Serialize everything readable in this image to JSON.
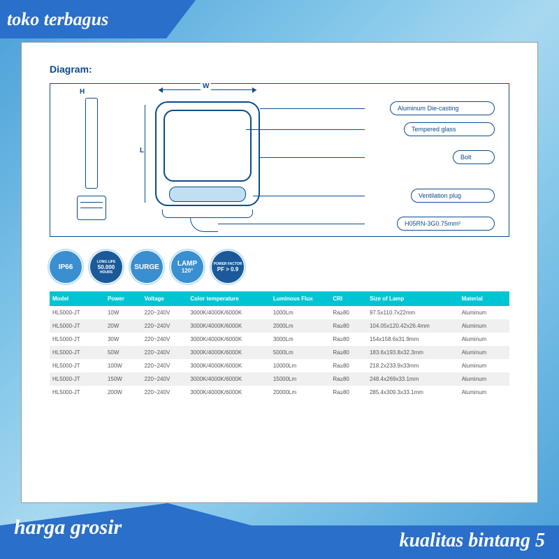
{
  "banners": {
    "top": "toko terbagus",
    "bottom_left": "harga grosir",
    "bottom_right": "kualitas bintang 5"
  },
  "diagram": {
    "title": "Diagram:",
    "dim_w": "W",
    "dim_l": "L",
    "dim_h": "H",
    "callouts": [
      "Aluminum Die-casting",
      "Tempered  glass",
      "Bolt",
      "Ventilation plug",
      "H05RN-3G0.75mm²"
    ]
  },
  "badges": [
    {
      "line1": "IP66",
      "bg": "#3a8fd0"
    },
    {
      "line1": "LONG LIFE",
      "line2": "50.000",
      "line3": "HOURS",
      "bg": "#1a5a9a"
    },
    {
      "line1": "SURGE",
      "bg": "#3a8fd0"
    },
    {
      "line1": "LAMP",
      "line2": "120°",
      "bg": "#3a8fd0"
    },
    {
      "line1": "POWER FACTOR",
      "line2": "PF > 0.9",
      "bg": "#1a5a9a"
    }
  ],
  "table": {
    "headers": [
      "Model",
      "Power",
      "Voltage",
      "Color temperature",
      "Luminous Flux",
      "CRI",
      "Size of Lamp",
      "Material"
    ],
    "rows": [
      [
        "HL5000-JT",
        "10W",
        "220~240V",
        "3000K/4000K/6000K",
        "1000Lm",
        "Ra≥80",
        "97.5x110.7x22mm",
        "Aluminum"
      ],
      [
        "HL5000-JT",
        "20W",
        "220~240V",
        "3000K/4000K/6000K",
        "2000Lm",
        "Ra≥80",
        "104.05x120.42x26.4mm",
        "Aluminum"
      ],
      [
        "HL5000-JT",
        "30W",
        "220~240V",
        "3000K/4000K/6000K",
        "3000Lm",
        "Ra≥80",
        "154x158.6x31.9mm",
        "Aluminum"
      ],
      [
        "HL5000-JT",
        "50W",
        "220~240V",
        "3000K/4000K/6000K",
        "5000Lm",
        "Ra≥80",
        "183.6x193.8x32.3mm",
        "Aluminum"
      ],
      [
        "HL5000-JT",
        "100W",
        "220~240V",
        "3000K/4000K/6000K",
        "10000Lm",
        "Ra≥80",
        "218.2x233.9x33mm",
        "Aluminum"
      ],
      [
        "HL5000-JT",
        "150W",
        "220~240V",
        "3000K/4000K/6000K",
        "15000Lm",
        "Ra≥80",
        "248.4x269x33.1mm",
        "Aluminum"
      ],
      [
        "HL5000-JT",
        "200W",
        "220~240V",
        "3000K/4000K/6000K",
        "20000Lm",
        "Ra≥80",
        "285.4x309.3x33.1mm",
        "Aluminum"
      ]
    ],
    "col_widths": [
      "12%",
      "8%",
      "10%",
      "18%",
      "13%",
      "8%",
      "20%",
      "11%"
    ]
  },
  "colors": {
    "header_bg": "#00c4d4",
    "banner_bg": "#2a6fc9",
    "diagram_line": "#0a4a8a"
  }
}
